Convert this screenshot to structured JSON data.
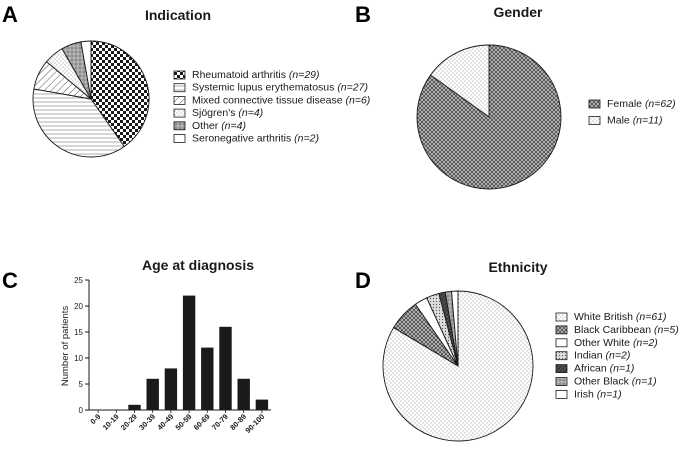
{
  "panels": {
    "a": "A",
    "b": "B",
    "c": "C",
    "d": "D"
  },
  "chart_data": [
    {
      "id": "indication",
      "type": "pie",
      "title": "Indication",
      "legend_position": "right",
      "slices": [
        {
          "label": "Rheumatoid arthritis",
          "n_text": "(n=29)",
          "value": 29,
          "pattern": "checker"
        },
        {
          "label": "Systemic lupus erythematosus",
          "n_text": "(n=27)",
          "value": 27,
          "pattern": "hlines"
        },
        {
          "label": "Mixed connective tissue disease",
          "n_text": "(n=6)",
          "value": 6,
          "pattern": "diag"
        },
        {
          "label": "Sjögren's",
          "n_text": "(n=4)",
          "value": 4,
          "pattern": "dots"
        },
        {
          "label": "Other",
          "n_text": "(n=4)",
          "value": 4,
          "pattern": "grid"
        },
        {
          "label": "Seronegative arthritis",
          "n_text": "(n=2)",
          "value": 2,
          "pattern": "white"
        }
      ]
    },
    {
      "id": "gender",
      "type": "pie",
      "title": "Gender",
      "legend_position": "right",
      "slices": [
        {
          "label": "Female",
          "n_text": "(n=62)",
          "value": 62,
          "pattern": "crosshatch"
        },
        {
          "label": "Male",
          "n_text": "(n=11)",
          "value": 11,
          "pattern": "dots"
        }
      ]
    },
    {
      "id": "age",
      "type": "bar",
      "title": "Age at diagnosis",
      "xlabel": "",
      "ylabel": "Number of patients",
      "categories": [
        "0-9",
        "10-19",
        "20-29",
        "30-39",
        "40-49",
        "50-59",
        "60-69",
        "70-79",
        "80-89",
        "90-100"
      ],
      "values": [
        0,
        0,
        1,
        6,
        8,
        22,
        12,
        16,
        6,
        2
      ],
      "ylim": [
        0,
        25
      ],
      "yticks": [
        0,
        5,
        10,
        15,
        20,
        25
      ],
      "bar_color": "#1a1a1a"
    },
    {
      "id": "ethnicity",
      "type": "pie",
      "title": "Ethnicity",
      "legend_position": "right",
      "slices": [
        {
          "label": "White British",
          "n_text": "(n=61)",
          "value": 61,
          "pattern": "dots"
        },
        {
          "label": "Black Caribbean",
          "n_text": "(n=5)",
          "value": 5,
          "pattern": "crosshatch"
        },
        {
          "label": "Other White",
          "n_text": "(n=2)",
          "value": 2,
          "pattern": "white"
        },
        {
          "label": "Indian",
          "n_text": "(n=2)",
          "value": 2,
          "pattern": "smalldots"
        },
        {
          "label": "African",
          "n_text": "(n=1)",
          "value": 1,
          "pattern": "darkdiag"
        },
        {
          "label": "Other Black",
          "n_text": "(n=1)",
          "value": 1,
          "pattern": "grid"
        },
        {
          "label": "Irish",
          "n_text": "(n=1)",
          "value": 1,
          "pattern": "white"
        }
      ]
    }
  ]
}
